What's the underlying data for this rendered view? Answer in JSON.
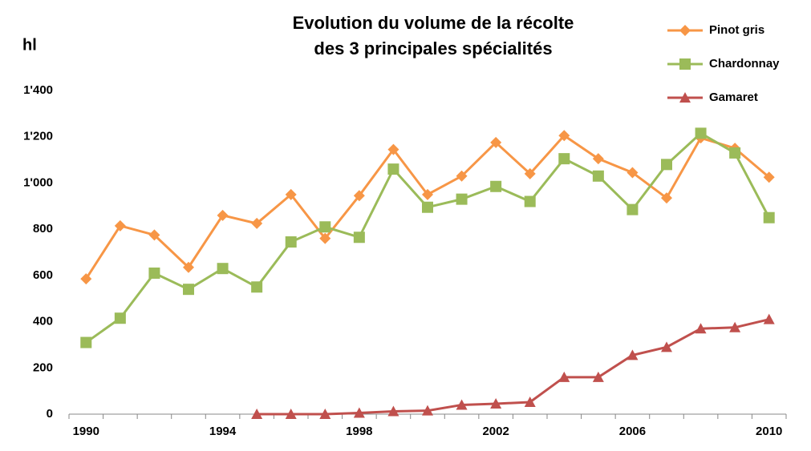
{
  "chart_data": {
    "type": "line",
    "title": [
      "Evolution du volume de la récolte",
      "des 3 principales spécialités"
    ],
    "ylabel": "hl",
    "categories": [
      "1990",
      null,
      null,
      null,
      "1994",
      null,
      null,
      null,
      "1998",
      null,
      null,
      null,
      "2002",
      null,
      null,
      null,
      "2006",
      null,
      null,
      null,
      "2010"
    ],
    "series": [
      {
        "name": "Pinot gris",
        "color": "#f79646",
        "marker": "diamond",
        "values": [
          585,
          815,
          775,
          635,
          860,
          825,
          950,
          760,
          945,
          1145,
          950,
          1030,
          1175,
          1040,
          1205,
          1105,
          1045,
          935,
          1195,
          1150,
          1025
        ]
      },
      {
        "name": "Chardonnay",
        "color": "#9bbb59",
        "marker": "square",
        "values": [
          310,
          415,
          610,
          540,
          630,
          550,
          745,
          810,
          765,
          1060,
          895,
          930,
          985,
          920,
          1105,
          1030,
          885,
          1080,
          1215,
          1130,
          850
        ]
      },
      {
        "name": "Gamaret",
        "color": "#c0504d",
        "marker": "triangle",
        "values": [
          null,
          null,
          null,
          null,
          null,
          0,
          0,
          0,
          5,
          12,
          15,
          40,
          45,
          52,
          160,
          160,
          255,
          290,
          370,
          375,
          410
        ]
      }
    ],
    "ylim": [
      0,
      1400
    ],
    "yticks": [
      0,
      200,
      400,
      600,
      800,
      {
        "value": 1000,
        "label": "1'000"
      },
      {
        "value": 1200,
        "label": "1'200"
      },
      {
        "value": 1400,
        "label": "1'400"
      }
    ],
    "grid": false,
    "legend": "top-right"
  }
}
